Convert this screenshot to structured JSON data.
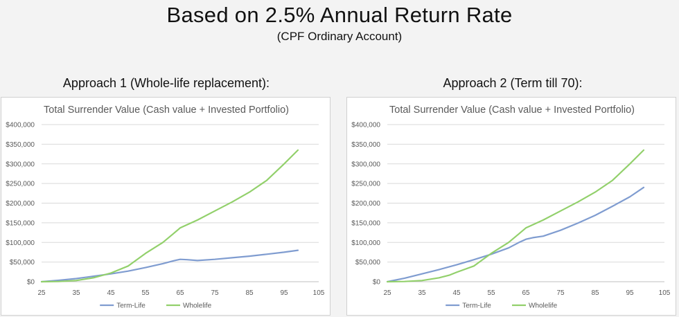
{
  "header": {
    "title": "Based on 2.5% Annual Return Rate",
    "subtitle": "(CPF Ordinary Account)"
  },
  "colors": {
    "term_life": "#7f9cd0",
    "wholelife": "#92d06b"
  },
  "chart_data": [
    {
      "type": "line",
      "panel_heading": "Approach 1 (Whole-life replacement):",
      "title": "Total Surrender Value (Cash value + Invested Portfolio)",
      "xlabel": "",
      "ylabel": "",
      "xlim": [
        25,
        105
      ],
      "ylim": [
        0,
        400000
      ],
      "x_ticks": [
        "25",
        "35",
        "45",
        "55",
        "65",
        "75",
        "85",
        "95",
        "105"
      ],
      "y_ticks": [
        "$0",
        "$50,000",
        "$100,000",
        "$150,000",
        "$200,000",
        "$250,000",
        "$300,000",
        "$350,000",
        "$400,000"
      ],
      "grid": true,
      "legend": "bottom",
      "series": [
        {
          "name": "Term-Life",
          "x": [
            25,
            30,
            35,
            40,
            45,
            50,
            55,
            60,
            63,
            65,
            67,
            70,
            75,
            80,
            85,
            90,
            95,
            99
          ],
          "y": [
            0,
            3500,
            8000,
            14000,
            20000,
            27000,
            36000,
            46000,
            53000,
            57000,
            56000,
            54000,
            57000,
            61000,
            65000,
            70000,
            75000,
            80000
          ]
        },
        {
          "name": "Wholelife",
          "x": [
            25,
            30,
            35,
            40,
            45,
            50,
            55,
            60,
            63,
            65,
            70,
            75,
            80,
            85,
            90,
            95,
            99
          ],
          "y": [
            0,
            500,
            3000,
            10000,
            22000,
            40000,
            72000,
            100000,
            122000,
            137000,
            157000,
            180000,
            203000,
            228000,
            258000,
            300000,
            335000
          ]
        }
      ]
    },
    {
      "type": "line",
      "panel_heading": "Approach 2 (Term till 70):",
      "title": "Total Surrender Value (Cash value + Invested Portfolio)",
      "xlabel": "",
      "ylabel": "",
      "xlim": [
        25,
        105
      ],
      "ylim": [
        0,
        400000
      ],
      "x_ticks": [
        "25",
        "35",
        "45",
        "55",
        "65",
        "75",
        "85",
        "95",
        "105"
      ],
      "y_ticks": [
        "$0",
        "$50,000",
        "$100,000",
        "$150,000",
        "$200,000",
        "$250,000",
        "$300,000",
        "$350,000",
        "$400,000"
      ],
      "grid": true,
      "legend": "bottom",
      "series": [
        {
          "name": "Term-Life",
          "x": [
            25,
            30,
            35,
            40,
            45,
            50,
            55,
            60,
            63,
            65,
            67,
            70,
            75,
            80,
            85,
            90,
            95,
            99
          ],
          "y": [
            0,
            9000,
            20000,
            31000,
            43000,
            56000,
            70000,
            86000,
            100000,
            108000,
            112000,
            116000,
            131000,
            149000,
            169000,
            192000,
            216000,
            240000
          ]
        },
        {
          "name": "Wholelife",
          "x": [
            25,
            30,
            35,
            40,
            43,
            45,
            50,
            55,
            60,
            63,
            65,
            70,
            75,
            80,
            85,
            90,
            95,
            99
          ],
          "y": [
            0,
            500,
            3000,
            10000,
            17000,
            24000,
            40000,
            72000,
            100000,
            122000,
            137000,
            157000,
            180000,
            203000,
            228000,
            258000,
            300000,
            335000
          ]
        }
      ]
    }
  ]
}
